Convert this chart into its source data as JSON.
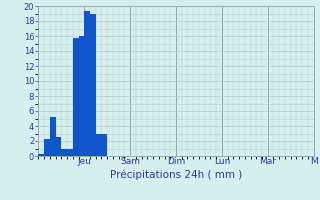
{
  "bar_values": [
    0.3,
    2.3,
    5.2,
    2.5,
    1.0,
    1.0,
    15.8,
    16.0,
    19.3,
    19.0,
    3.0,
    3.0,
    0,
    0,
    0,
    0,
    0,
    0,
    0,
    0,
    0,
    0,
    0,
    0,
    0,
    0,
    0,
    0,
    0,
    0,
    0,
    0,
    0,
    0,
    0,
    0,
    0,
    0,
    0,
    0,
    0,
    0,
    0,
    0,
    0,
    0,
    0,
    0
  ],
  "num_bars": 48,
  "ylim": [
    0,
    20
  ],
  "ytick_step": 2,
  "day_labels": [
    "Jeu",
    "Sam",
    "Dim",
    "Lun",
    "Mar",
    "M"
  ],
  "day_tick_positions": [
    8,
    16,
    24,
    32,
    40,
    48
  ],
  "major_vline_positions": [
    8,
    16,
    24,
    32,
    40,
    48
  ],
  "xlabel": "Précipitations 24h ( mm )",
  "bar_color": "#1155cc",
  "bg_color": "#d6eeee",
  "grid_minor_color": "#b0cccc",
  "grid_major_color": "#8aacac",
  "tick_color": "#3333aa",
  "xlabel_color": "#3333aa",
  "xlabel_fontsize": 7.5,
  "ytick_fontsize": 6,
  "xtick_fontsize": 6.5,
  "figsize": [
    3.2,
    2.0
  ],
  "dpi": 100
}
